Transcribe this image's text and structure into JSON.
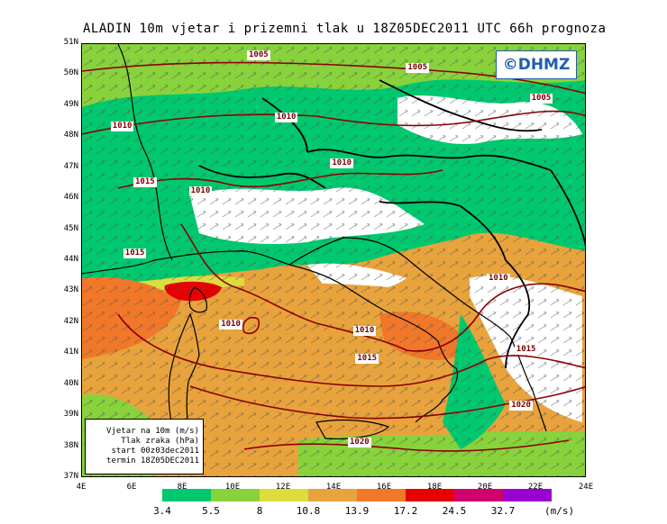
{
  "title": "ALADIN 10m vjetar i prizemni tlak u 18Z05DEC2011 UTC 66h prognoza",
  "logo": "©DHMZ",
  "lat_labels": [
    "51N",
    "50N",
    "49N",
    "48N",
    "47N",
    "46N",
    "45N",
    "44N",
    "43N",
    "42N",
    "41N",
    "40N",
    "39N",
    "38N",
    "37N"
  ],
  "lon_labels": [
    "4E",
    "6E",
    "8E",
    "10E",
    "12E",
    "14E",
    "16E",
    "18E",
    "20E",
    "22E",
    "24E"
  ],
  "info": {
    "line1": "Vjetar na 10m (m/s)",
    "line2": "Tlak zraka (hPa)",
    "line3": "start 00z03dec2011",
    "line4": "termin 18Z05DEC2011"
  },
  "isobars": [
    {
      "label": "1005",
      "lon": 11.0,
      "lat": 50.6
    },
    {
      "label": "1005",
      "lon": 17.3,
      "lat": 50.2
    },
    {
      "label": "1005",
      "lon": 22.2,
      "lat": 49.2
    },
    {
      "label": "1010",
      "lon": 5.6,
      "lat": 48.3
    },
    {
      "label": "1010",
      "lon": 12.1,
      "lat": 48.6
    },
    {
      "label": "1010",
      "lon": 14.3,
      "lat": 47.1
    },
    {
      "label": "1010",
      "lon": 8.7,
      "lat": 46.2
    },
    {
      "label": "1015",
      "lon": 6.5,
      "lat": 46.5
    },
    {
      "label": "1015",
      "lon": 6.1,
      "lat": 44.2
    },
    {
      "label": "1010",
      "lon": 9.9,
      "lat": 41.9
    },
    {
      "label": "1010",
      "lon": 15.2,
      "lat": 41.7
    },
    {
      "label": "1015",
      "lon": 15.3,
      "lat": 40.8
    },
    {
      "label": "1010",
      "lon": 20.5,
      "lat": 43.4
    },
    {
      "label": "1015",
      "lon": 21.6,
      "lat": 41.1
    },
    {
      "label": "1020",
      "lon": 21.4,
      "lat": 39.3
    },
    {
      "label": "1020",
      "lon": 15.0,
      "lat": 38.1
    }
  ],
  "legend": {
    "unit": "(m/s)",
    "labels": [
      "3.4",
      "5.5",
      "8",
      "10.8",
      "13.9",
      "17.2",
      "24.5",
      "32.7"
    ],
    "colors": [
      "#00c86e",
      "#88d23c",
      "#dcdc3c",
      "#e8a33c",
      "#f07828",
      "#e60000",
      "#d2006e",
      "#9b00d2"
    ]
  },
  "map_extent": {
    "lon_min": 4,
    "lon_max": 24,
    "lat_min": 37,
    "lat_max": 51
  }
}
